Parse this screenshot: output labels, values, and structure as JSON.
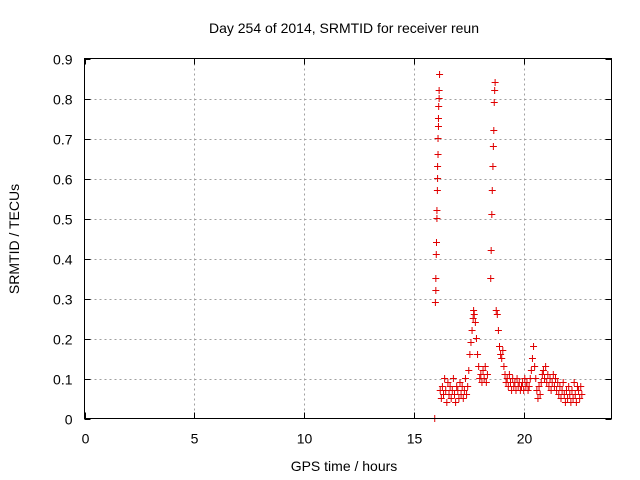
{
  "chart_data": {
    "type": "scatter",
    "title": "Day 254 of 2014, SRMTID for receiver reun",
    "xlabel": "GPS time / hours",
    "ylabel": "SRMTID / TECUs",
    "xlim": [
      0,
      24
    ],
    "ylim": [
      0,
      0.9
    ],
    "xticks": [
      0,
      5,
      10,
      15,
      20
    ],
    "xtick_labels": [
      "0",
      "5",
      "10",
      "15",
      "20"
    ],
    "yticks": [
      0,
      0.1,
      0.2,
      0.3,
      0.4,
      0.5,
      0.6,
      0.7,
      0.8,
      0.9
    ],
    "ytick_labels": [
      "0",
      "0.1",
      "0.2",
      "0.3",
      "0.4",
      "0.5",
      "0.6",
      "0.7",
      "0.8",
      "0.9"
    ],
    "grid": true,
    "marker": "+",
    "series": [
      {
        "name": "SRMTID",
        "color": "#e00000",
        "points": [
          [
            15.95,
            0.0
          ],
          [
            15.98,
            0.29
          ],
          [
            16.0,
            0.32
          ],
          [
            16.0,
            0.35
          ],
          [
            16.02,
            0.41
          ],
          [
            16.03,
            0.44
          ],
          [
            16.05,
            0.5
          ],
          [
            16.05,
            0.52
          ],
          [
            16.07,
            0.57
          ],
          [
            16.08,
            0.6
          ],
          [
            16.08,
            0.63
          ],
          [
            16.1,
            0.66
          ],
          [
            16.1,
            0.7
          ],
          [
            16.12,
            0.73
          ],
          [
            16.12,
            0.75
          ],
          [
            16.13,
            0.78
          ],
          [
            16.15,
            0.8
          ],
          [
            16.15,
            0.82
          ],
          [
            16.17,
            0.86
          ],
          [
            16.2,
            0.07
          ],
          [
            16.25,
            0.05
          ],
          [
            16.3,
            0.08
          ],
          [
            16.35,
            0.06
          ],
          [
            16.4,
            0.1
          ],
          [
            16.45,
            0.07
          ],
          [
            16.5,
            0.04
          ],
          [
            16.55,
            0.09
          ],
          [
            16.6,
            0.06
          ],
          [
            16.65,
            0.08
          ],
          [
            16.7,
            0.05
          ],
          [
            16.75,
            0.07
          ],
          [
            16.8,
            0.1
          ],
          [
            16.85,
            0.06
          ],
          [
            16.9,
            0.04
          ],
          [
            16.95,
            0.08
          ],
          [
            17.0,
            0.07
          ],
          [
            17.05,
            0.05
          ],
          [
            17.1,
            0.09
          ],
          [
            17.15,
            0.06
          ],
          [
            17.2,
            0.08
          ],
          [
            17.25,
            0.05
          ],
          [
            17.3,
            0.07
          ],
          [
            17.35,
            0.1
          ],
          [
            17.4,
            0.06
          ],
          [
            17.45,
            0.08
          ],
          [
            17.5,
            0.12
          ],
          [
            17.55,
            0.16
          ],
          [
            17.6,
            0.19
          ],
          [
            17.65,
            0.22
          ],
          [
            17.7,
            0.25
          ],
          [
            17.72,
            0.27
          ],
          [
            17.75,
            0.26
          ],
          [
            17.8,
            0.24
          ],
          [
            17.85,
            0.2
          ],
          [
            17.9,
            0.16
          ],
          [
            17.95,
            0.13
          ],
          [
            18.0,
            0.1
          ],
          [
            18.05,
            0.11
          ],
          [
            18.1,
            0.09
          ],
          [
            18.15,
            0.12
          ],
          [
            18.2,
            0.1
          ],
          [
            18.25,
            0.13
          ],
          [
            18.3,
            0.09
          ],
          [
            18.35,
            0.11
          ],
          [
            18.5,
            0.35
          ],
          [
            18.52,
            0.42
          ],
          [
            18.55,
            0.51
          ],
          [
            18.57,
            0.57
          ],
          [
            18.6,
            0.63
          ],
          [
            18.62,
            0.68
          ],
          [
            18.64,
            0.72
          ],
          [
            18.66,
            0.79
          ],
          [
            18.68,
            0.82
          ],
          [
            18.7,
            0.84
          ],
          [
            18.75,
            0.27
          ],
          [
            18.8,
            0.26
          ],
          [
            18.85,
            0.22
          ],
          [
            18.9,
            0.18
          ],
          [
            18.95,
            0.16
          ],
          [
            19.0,
            0.15
          ],
          [
            19.05,
            0.17
          ],
          [
            19.1,
            0.13
          ],
          [
            19.15,
            0.11
          ],
          [
            19.2,
            0.09
          ],
          [
            19.25,
            0.1
          ],
          [
            19.3,
            0.08
          ],
          [
            19.35,
            0.11
          ],
          [
            19.4,
            0.09
          ],
          [
            19.45,
            0.07
          ],
          [
            19.5,
            0.1
          ],
          [
            19.55,
            0.08
          ],
          [
            19.6,
            0.09
          ],
          [
            19.65,
            0.07
          ],
          [
            19.7,
            0.1
          ],
          [
            19.75,
            0.08
          ],
          [
            19.8,
            0.09
          ],
          [
            19.85,
            0.07
          ],
          [
            19.9,
            0.08
          ],
          [
            19.95,
            0.09
          ],
          [
            20.0,
            0.07
          ],
          [
            20.05,
            0.1
          ],
          [
            20.1,
            0.08
          ],
          [
            20.15,
            0.09
          ],
          [
            20.2,
            0.07
          ],
          [
            20.25,
            0.08
          ],
          [
            20.3,
            0.1
          ],
          [
            20.35,
            0.12
          ],
          [
            20.4,
            0.15
          ],
          [
            20.45,
            0.18
          ],
          [
            20.5,
            0.13
          ],
          [
            20.55,
            0.1
          ],
          [
            20.6,
            0.07
          ],
          [
            20.65,
            0.05
          ],
          [
            20.7,
            0.08
          ],
          [
            20.75,
            0.06
          ],
          [
            20.8,
            0.09
          ],
          [
            20.85,
            0.11
          ],
          [
            20.9,
            0.12
          ],
          [
            20.95,
            0.1
          ],
          [
            21.0,
            0.13
          ],
          [
            21.05,
            0.09
          ],
          [
            21.1,
            0.11
          ],
          [
            21.15,
            0.08
          ],
          [
            21.2,
            0.1
          ],
          [
            21.25,
            0.07
          ],
          [
            21.3,
            0.09
          ],
          [
            21.35,
            0.11
          ],
          [
            21.4,
            0.08
          ],
          [
            21.45,
            0.1
          ],
          [
            21.5,
            0.07
          ],
          [
            21.55,
            0.09
          ],
          [
            21.6,
            0.06
          ],
          [
            21.65,
            0.08
          ],
          [
            21.7,
            0.05
          ],
          [
            21.75,
            0.07
          ],
          [
            21.8,
            0.09
          ],
          [
            21.85,
            0.06
          ],
          [
            21.9,
            0.04
          ],
          [
            21.95,
            0.07
          ],
          [
            22.0,
            0.05
          ],
          [
            22.05,
            0.08
          ],
          [
            22.1,
            0.06
          ],
          [
            22.15,
            0.04
          ],
          [
            22.2,
            0.07
          ],
          [
            22.25,
            0.05
          ],
          [
            22.3,
            0.09
          ],
          [
            22.35,
            0.06
          ],
          [
            22.4,
            0.04
          ],
          [
            22.45,
            0.08
          ],
          [
            22.5,
            0.07
          ],
          [
            22.55,
            0.05
          ],
          [
            22.6,
            0.08
          ],
          [
            22.65,
            0.06
          ]
        ]
      }
    ]
  }
}
